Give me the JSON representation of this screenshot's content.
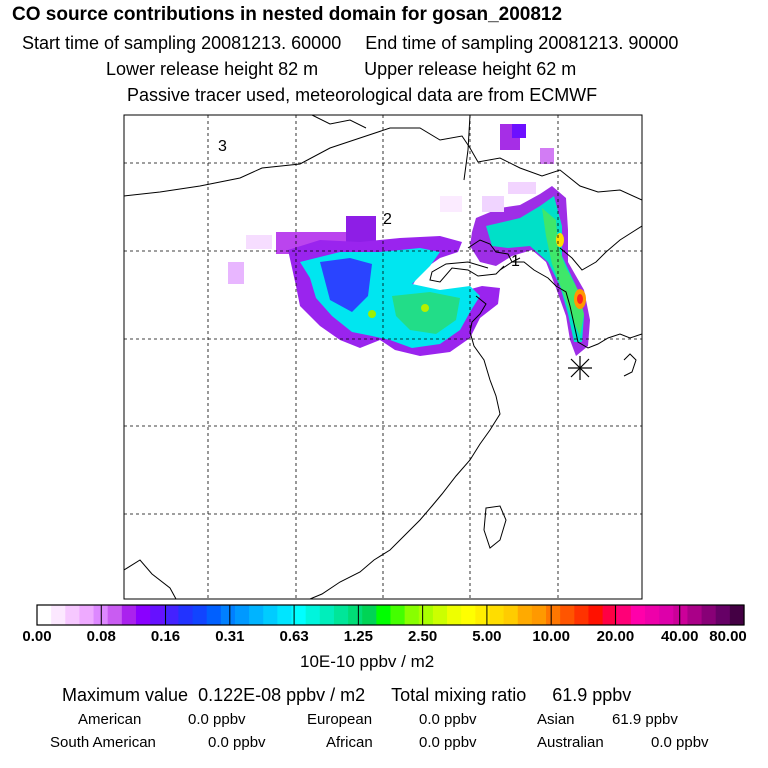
{
  "header": {
    "title": "CO  source contributions in nested domain for gosan_200812",
    "start_label": "Start time of sampling 20081213. 60000",
    "end_label": "End time of sampling 20081213. 90000",
    "lower_label": "Lower release height   82 m",
    "upper_label": "Upper release height   62 m",
    "info": "Passive tracer used, meteorological data are from ECMWF"
  },
  "map": {
    "region_markers": [
      "1",
      "2",
      "3"
    ]
  },
  "colorbar": {
    "tick_labels": [
      "0.00",
      "0.08",
      "0.16",
      "0.31",
      "0.63",
      "1.25",
      "2.50",
      "5.00",
      "10.00",
      "20.00",
      "40.00",
      "80.00"
    ],
    "colors": [
      "#ffffff",
      "#fce8ff",
      "#f6c8ff",
      "#eeaaff",
      "#dd88ff",
      "#c95cf2",
      "#aa22ee",
      "#8a00ff",
      "#6611ff",
      "#4422ff",
      "#2233ff",
      "#1144ff",
      "#0060ff",
      "#0080ff",
      "#0099ff",
      "#00b4ff",
      "#00ccff",
      "#00e5ff",
      "#00ffff",
      "#00f5dd",
      "#00eebb",
      "#00e699",
      "#00dd77",
      "#00d455",
      "#00ff00",
      "#44ff00",
      "#88ff00",
      "#aaff00",
      "#ccff00",
      "#eeff00",
      "#ffff00",
      "#ffee00",
      "#ffdd00",
      "#ffcc00",
      "#ffaa00",
      "#ff9900",
      "#ff7700",
      "#ff5500",
      "#ff3300",
      "#ff1100",
      "#ff0044",
      "#ff0077",
      "#ff00aa",
      "#ee00aa",
      "#dd00aa",
      "#cc0099",
      "#aa0088",
      "#880077",
      "#660066",
      "#440044"
    ],
    "units": "10E-10 ppbv / m2"
  },
  "stats": {
    "max_label": "Maximum value",
    "max_value": "0.122E-08 ppbv / m2",
    "total_label": "Total mixing ratio",
    "total_value": "61.9 ppbv",
    "american_label": "American",
    "american_value": "0.0 ppbv",
    "european_label": "European",
    "european_value": "0.0 ppbv",
    "asian_label": "Asian",
    "asian_value": "61.9 ppbv",
    "south_american_label": "South American",
    "south_american_value": "0.0 ppbv",
    "african_label": "African",
    "african_value": "0.0 ppbv",
    "australian_label": "Australian",
    "australian_value": "0.0 ppbv"
  },
  "chart_data": {
    "type": "heatmap",
    "title": "CO  source contributions in nested domain for gosan_200812",
    "colorbar_levels": [
      0.0,
      0.08,
      0.16,
      0.31,
      0.63,
      1.25,
      2.5,
      5.0,
      10.0,
      20.0,
      40.0,
      80.0
    ],
    "units": "10E-10 ppbv / m2",
    "max_value": "0.122E-08 ppbv / m2",
    "total_mixing_ratio_ppbv": 61.9
  }
}
